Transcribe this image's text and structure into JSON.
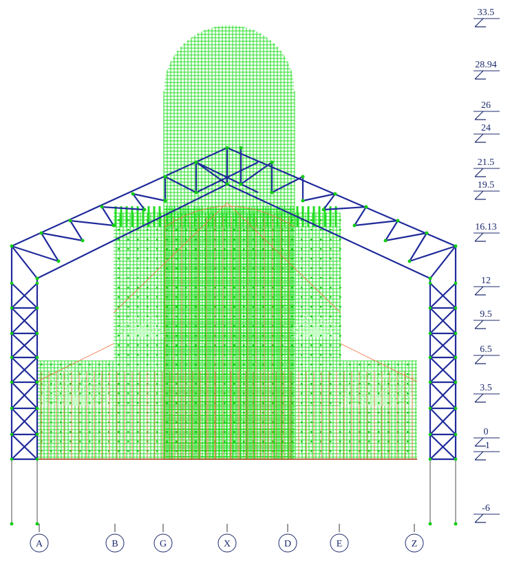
{
  "levels": [
    {
      "label": "33.5"
    },
    {
      "label": "28.94"
    },
    {
      "label": "26"
    },
    {
      "label": "24"
    },
    {
      "label": "21.5"
    },
    {
      "label": "19.5"
    },
    {
      "label": "16.13"
    },
    {
      "label": "12"
    },
    {
      "label": "9.5"
    },
    {
      "label": "6.5"
    },
    {
      "label": "3.5"
    },
    {
      "label": "0"
    },
    {
      "label": "-1"
    },
    {
      "label": "-6"
    }
  ],
  "axes": [
    {
      "label": "A"
    },
    {
      "label": "B"
    },
    {
      "label": "G"
    },
    {
      "label": "X"
    },
    {
      "label": "D"
    },
    {
      "label": "E"
    },
    {
      "label": "Z"
    }
  ],
  "colors": {
    "truss": "#1f2a9a",
    "mesh": "#22dd22",
    "mesh_node": "#11cc11",
    "frame": "#ee7744",
    "pile": "#888888",
    "label": "#1c2a6e"
  }
}
